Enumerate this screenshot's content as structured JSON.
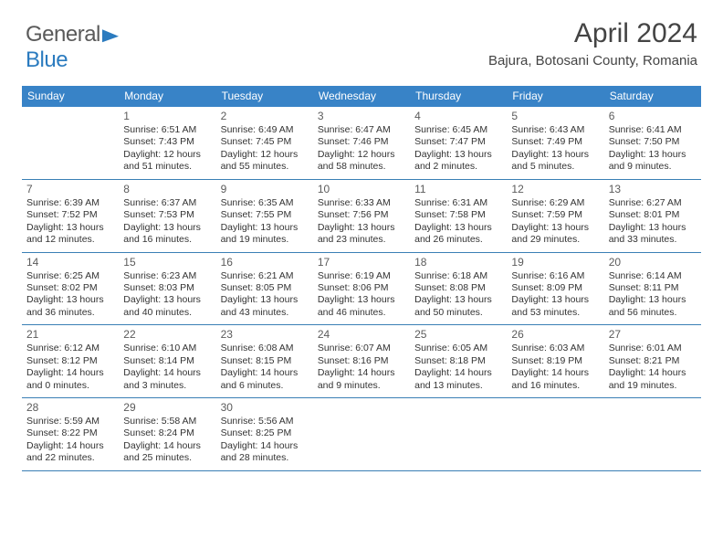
{
  "logo": {
    "part1": "General",
    "part2": "Blue"
  },
  "title": {
    "month": "April 2024",
    "location": "Bajura, Botosani County, Romania"
  },
  "colors": {
    "header_bg": "#3883c7",
    "header_text": "#ffffff",
    "rule": "#3a7fb5",
    "text": "#333333",
    "daynum": "#5b5b5b",
    "logo_gray": "#5a5a5a",
    "logo_blue": "#2b7bbf",
    "bg": "#ffffff"
  },
  "dayHeaders": [
    "Sunday",
    "Monday",
    "Tuesday",
    "Wednesday",
    "Thursday",
    "Friday",
    "Saturday"
  ],
  "weeks": [
    [
      null,
      {
        "n": "1",
        "sr": "Sunrise: 6:51 AM",
        "ss": "Sunset: 7:43 PM",
        "dl1": "Daylight: 12 hours",
        "dl2": "and 51 minutes."
      },
      {
        "n": "2",
        "sr": "Sunrise: 6:49 AM",
        "ss": "Sunset: 7:45 PM",
        "dl1": "Daylight: 12 hours",
        "dl2": "and 55 minutes."
      },
      {
        "n": "3",
        "sr": "Sunrise: 6:47 AM",
        "ss": "Sunset: 7:46 PM",
        "dl1": "Daylight: 12 hours",
        "dl2": "and 58 minutes."
      },
      {
        "n": "4",
        "sr": "Sunrise: 6:45 AM",
        "ss": "Sunset: 7:47 PM",
        "dl1": "Daylight: 13 hours",
        "dl2": "and 2 minutes."
      },
      {
        "n": "5",
        "sr": "Sunrise: 6:43 AM",
        "ss": "Sunset: 7:49 PM",
        "dl1": "Daylight: 13 hours",
        "dl2": "and 5 minutes."
      },
      {
        "n": "6",
        "sr": "Sunrise: 6:41 AM",
        "ss": "Sunset: 7:50 PM",
        "dl1": "Daylight: 13 hours",
        "dl2": "and 9 minutes."
      }
    ],
    [
      {
        "n": "7",
        "sr": "Sunrise: 6:39 AM",
        "ss": "Sunset: 7:52 PM",
        "dl1": "Daylight: 13 hours",
        "dl2": "and 12 minutes."
      },
      {
        "n": "8",
        "sr": "Sunrise: 6:37 AM",
        "ss": "Sunset: 7:53 PM",
        "dl1": "Daylight: 13 hours",
        "dl2": "and 16 minutes."
      },
      {
        "n": "9",
        "sr": "Sunrise: 6:35 AM",
        "ss": "Sunset: 7:55 PM",
        "dl1": "Daylight: 13 hours",
        "dl2": "and 19 minutes."
      },
      {
        "n": "10",
        "sr": "Sunrise: 6:33 AM",
        "ss": "Sunset: 7:56 PM",
        "dl1": "Daylight: 13 hours",
        "dl2": "and 23 minutes."
      },
      {
        "n": "11",
        "sr": "Sunrise: 6:31 AM",
        "ss": "Sunset: 7:58 PM",
        "dl1": "Daylight: 13 hours",
        "dl2": "and 26 minutes."
      },
      {
        "n": "12",
        "sr": "Sunrise: 6:29 AM",
        "ss": "Sunset: 7:59 PM",
        "dl1": "Daylight: 13 hours",
        "dl2": "and 29 minutes."
      },
      {
        "n": "13",
        "sr": "Sunrise: 6:27 AM",
        "ss": "Sunset: 8:01 PM",
        "dl1": "Daylight: 13 hours",
        "dl2": "and 33 minutes."
      }
    ],
    [
      {
        "n": "14",
        "sr": "Sunrise: 6:25 AM",
        "ss": "Sunset: 8:02 PM",
        "dl1": "Daylight: 13 hours",
        "dl2": "and 36 minutes."
      },
      {
        "n": "15",
        "sr": "Sunrise: 6:23 AM",
        "ss": "Sunset: 8:03 PM",
        "dl1": "Daylight: 13 hours",
        "dl2": "and 40 minutes."
      },
      {
        "n": "16",
        "sr": "Sunrise: 6:21 AM",
        "ss": "Sunset: 8:05 PM",
        "dl1": "Daylight: 13 hours",
        "dl2": "and 43 minutes."
      },
      {
        "n": "17",
        "sr": "Sunrise: 6:19 AM",
        "ss": "Sunset: 8:06 PM",
        "dl1": "Daylight: 13 hours",
        "dl2": "and 46 minutes."
      },
      {
        "n": "18",
        "sr": "Sunrise: 6:18 AM",
        "ss": "Sunset: 8:08 PM",
        "dl1": "Daylight: 13 hours",
        "dl2": "and 50 minutes."
      },
      {
        "n": "19",
        "sr": "Sunrise: 6:16 AM",
        "ss": "Sunset: 8:09 PM",
        "dl1": "Daylight: 13 hours",
        "dl2": "and 53 minutes."
      },
      {
        "n": "20",
        "sr": "Sunrise: 6:14 AM",
        "ss": "Sunset: 8:11 PM",
        "dl1": "Daylight: 13 hours",
        "dl2": "and 56 minutes."
      }
    ],
    [
      {
        "n": "21",
        "sr": "Sunrise: 6:12 AM",
        "ss": "Sunset: 8:12 PM",
        "dl1": "Daylight: 14 hours",
        "dl2": "and 0 minutes."
      },
      {
        "n": "22",
        "sr": "Sunrise: 6:10 AM",
        "ss": "Sunset: 8:14 PM",
        "dl1": "Daylight: 14 hours",
        "dl2": "and 3 minutes."
      },
      {
        "n": "23",
        "sr": "Sunrise: 6:08 AM",
        "ss": "Sunset: 8:15 PM",
        "dl1": "Daylight: 14 hours",
        "dl2": "and 6 minutes."
      },
      {
        "n": "24",
        "sr": "Sunrise: 6:07 AM",
        "ss": "Sunset: 8:16 PM",
        "dl1": "Daylight: 14 hours",
        "dl2": "and 9 minutes."
      },
      {
        "n": "25",
        "sr": "Sunrise: 6:05 AM",
        "ss": "Sunset: 8:18 PM",
        "dl1": "Daylight: 14 hours",
        "dl2": "and 13 minutes."
      },
      {
        "n": "26",
        "sr": "Sunrise: 6:03 AM",
        "ss": "Sunset: 8:19 PM",
        "dl1": "Daylight: 14 hours",
        "dl2": "and 16 minutes."
      },
      {
        "n": "27",
        "sr": "Sunrise: 6:01 AM",
        "ss": "Sunset: 8:21 PM",
        "dl1": "Daylight: 14 hours",
        "dl2": "and 19 minutes."
      }
    ],
    [
      {
        "n": "28",
        "sr": "Sunrise: 5:59 AM",
        "ss": "Sunset: 8:22 PM",
        "dl1": "Daylight: 14 hours",
        "dl2": "and 22 minutes."
      },
      {
        "n": "29",
        "sr": "Sunrise: 5:58 AM",
        "ss": "Sunset: 8:24 PM",
        "dl1": "Daylight: 14 hours",
        "dl2": "and 25 minutes."
      },
      {
        "n": "30",
        "sr": "Sunrise: 5:56 AM",
        "ss": "Sunset: 8:25 PM",
        "dl1": "Daylight: 14 hours",
        "dl2": "and 28 minutes."
      },
      null,
      null,
      null,
      null
    ]
  ]
}
